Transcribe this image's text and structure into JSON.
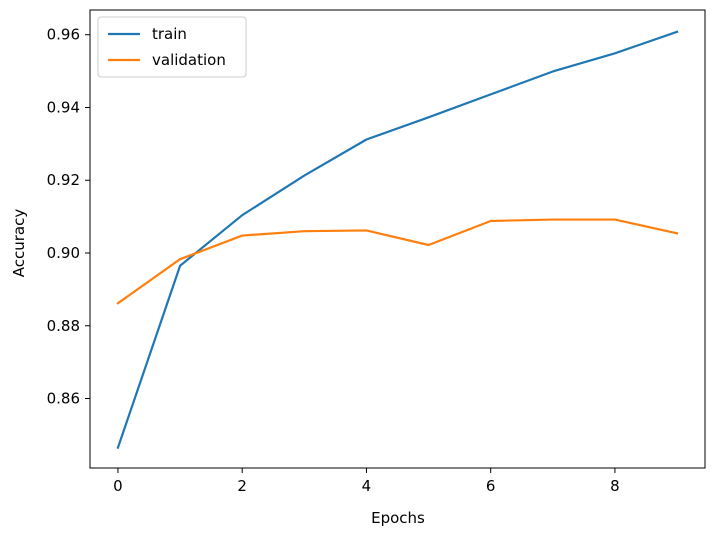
{
  "chart_data": {
    "type": "line",
    "title": "",
    "xlabel": "Epochs",
    "ylabel": "Accuracy",
    "xlim": [
      -0.45,
      9.45
    ],
    "ylim": [
      0.8409,
      0.9668
    ],
    "x_ticks": [
      0,
      2,
      4,
      6,
      8
    ],
    "y_ticks": [
      0.86,
      0.88,
      0.9,
      0.92,
      0.94,
      0.96
    ],
    "x_tick_labels": [
      "0",
      "2",
      "4",
      "6",
      "8"
    ],
    "y_tick_labels": [
      "0.86",
      "0.88",
      "0.90",
      "0.92",
      "0.94",
      "0.96"
    ],
    "grid": false,
    "legend_position": "top-left",
    "x": [
      0,
      1,
      2,
      3,
      4,
      5,
      6,
      7,
      8,
      9
    ],
    "series": [
      {
        "name": "train",
        "color": "#1f77b4",
        "values": [
          0.8465,
          0.8965,
          0.9104,
          0.9213,
          0.9312,
          0.9373,
          0.9436,
          0.9499,
          0.9549,
          0.9608
        ]
      },
      {
        "name": "validation",
        "color": "#ff7f0e",
        "values": [
          0.8862,
          0.8983,
          0.9048,
          0.906,
          0.9062,
          0.9022,
          0.9088,
          0.9092,
          0.9092,
          0.9054
        ]
      }
    ]
  }
}
